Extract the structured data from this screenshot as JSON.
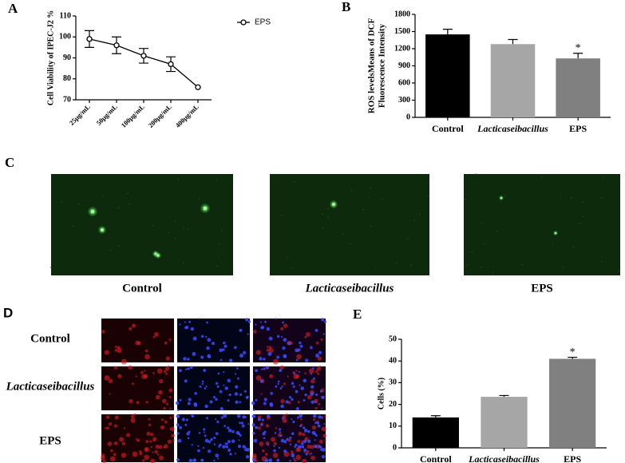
{
  "chart_data": [
    {
      "type": "line",
      "panel": "A",
      "y_label": "Cell Viability of IPEC-J2 %",
      "categories": [
        "25μg/mL",
        "50μg/mL",
        "100μg/mL",
        "200μg/mL",
        "400μg/mL"
      ],
      "series": [
        {
          "name": "EPS",
          "color": "#000000",
          "values": [
            99,
            96,
            91,
            87,
            76
          ],
          "errors": [
            4,
            4,
            3.5,
            3.5,
            0
          ]
        }
      ],
      "ylim": [
        70,
        110
      ],
      "yticks": [
        70,
        80,
        90,
        100,
        110
      ],
      "legend": "upper right"
    },
    {
      "type": "bar",
      "panel": "B",
      "y_label": [
        "ROS levelsMeans of DCF",
        "Fluorescence Intensity"
      ],
      "categories": [
        "Control",
        "Lacticaseibacillus",
        "EPS"
      ],
      "values": [
        1450,
        1280,
        1030
      ],
      "errors": [
        90,
        80,
        90
      ],
      "colors": [
        "#000000",
        "#a6a6a6",
        "#808080"
      ],
      "annotations": [
        {
          "category": "EPS",
          "text": "*"
        }
      ],
      "ylim": [
        0,
        1800
      ],
      "yticks": [
        0,
        300,
        600,
        900,
        1200,
        1500,
        1800
      ]
    },
    {
      "type": "bar",
      "panel": "E",
      "y_label": "Cells (%)",
      "categories": [
        "Control",
        "Lacticaseibacillus",
        "EPS"
      ],
      "values": [
        14,
        23.5,
        41
      ],
      "errors": [
        0.8,
        0.6,
        0.7
      ],
      "colors": [
        "#000000",
        "#a6a6a6",
        "#808080"
      ],
      "annotations": [
        {
          "category": "EPS",
          "text": "*"
        }
      ],
      "ylim": [
        0,
        50
      ],
      "yticks": [
        0,
        10,
        20,
        30,
        40,
        50
      ]
    }
  ],
  "panel_c": {
    "label": "C",
    "images": [
      "Control",
      "Lacticaseibacillus",
      "EPS"
    ]
  },
  "panel_d": {
    "label": "D",
    "rows": [
      "Control",
      "Lacticaseibacillus",
      "EPS"
    ]
  }
}
